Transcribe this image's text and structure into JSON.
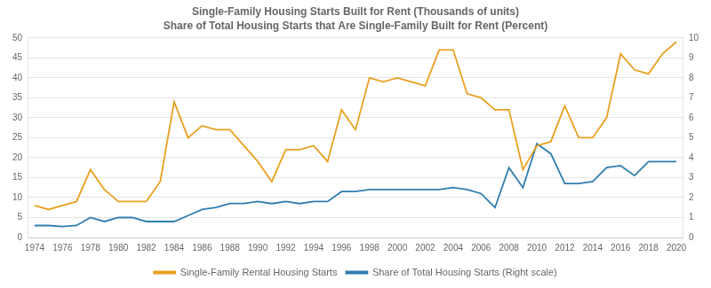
{
  "chart_data": {
    "type": "line",
    "title": "Single-Family Housing Starts Built for Rent (Thousands of units)",
    "subtitle": "Share of Total Housing Starts that Are Single-Family Built for Rent (Percent)",
    "x": [
      1974,
      1975,
      1976,
      1977,
      1978,
      1979,
      1980,
      1981,
      1982,
      1983,
      1984,
      1985,
      1986,
      1987,
      1988,
      1989,
      1990,
      1991,
      1992,
      1993,
      1994,
      1995,
      1996,
      1997,
      1998,
      1999,
      2000,
      2001,
      2002,
      2003,
      2004,
      2005,
      2006,
      2007,
      2008,
      2009,
      2010,
      2011,
      2012,
      2013,
      2014,
      2015,
      2016,
      2017,
      2018,
      2019,
      2020
    ],
    "series": [
      {
        "name": "Single-Family Rental Housing Starts",
        "color": "#E8A020",
        "values": [
          8,
          7,
          8,
          9,
          17,
          12,
          9,
          9,
          9,
          14,
          34,
          25,
          28,
          27,
          27,
          23,
          19,
          14,
          22,
          22,
          23,
          19,
          32,
          27,
          40,
          39,
          40,
          39,
          38,
          47,
          47,
          36,
          35,
          32,
          32,
          17,
          23,
          24,
          33,
          25,
          25,
          30,
          46,
          42,
          41,
          46,
          49
        ]
      },
      {
        "name": "Share of Total Housing Starts (Right scale)",
        "color": "#2E7DAF",
        "axis": "y2",
        "values": [
          0.6,
          0.6,
          0.55,
          0.6,
          1.0,
          0.8,
          1.0,
          1.0,
          0.8,
          0.8,
          0.8,
          1.1,
          1.4,
          1.5,
          1.7,
          1.7,
          1.8,
          1.7,
          1.8,
          1.7,
          1.8,
          1.8,
          2.3,
          2.3,
          2.4,
          2.4,
          2.4,
          2.4,
          2.4,
          2.4,
          2.5,
          2.4,
          2.2,
          1.5,
          3.5,
          2.5,
          4.7,
          4.2,
          2.7,
          2.7,
          2.8,
          3.5,
          3.6,
          3.1,
          3.8,
          3.8,
          3.8
        ]
      }
    ],
    "xlim": [
      1973.5,
      2020.5
    ],
    "xticks": [
      1974,
      1976,
      1978,
      1980,
      1982,
      1984,
      1986,
      1988,
      1990,
      1992,
      1994,
      1996,
      1998,
      2000,
      2002,
      2004,
      2006,
      2008,
      2010,
      2012,
      2014,
      2016,
      2018,
      2020
    ],
    "ylim": [
      0,
      50
    ],
    "yticks": [
      0,
      5,
      10,
      15,
      20,
      25,
      30,
      35,
      40,
      45,
      50
    ],
    "y2lim": [
      0,
      10
    ],
    "y2ticks": [
      0,
      1,
      2,
      3,
      4,
      5,
      6,
      7,
      8,
      9,
      10
    ],
    "grid": true,
    "legend": "bottom"
  }
}
